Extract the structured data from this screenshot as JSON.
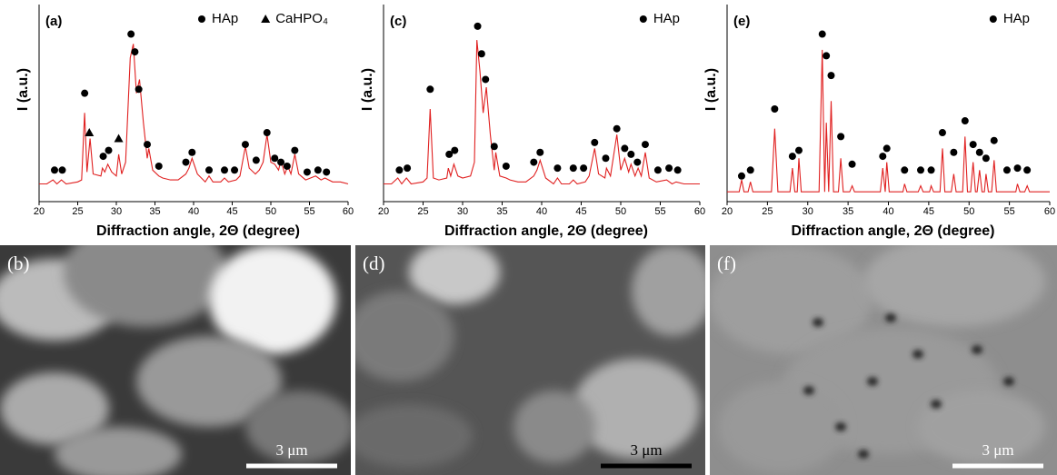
{
  "chart_data": [
    {
      "type": "line",
      "panel_label": "(a)",
      "xlabel": "Diffraction angle, 2Θ (degree)",
      "ylabel": "I (a.u.)",
      "xlim": [
        20,
        60
      ],
      "xticks": [
        20,
        25,
        30,
        35,
        40,
        45,
        50,
        55,
        60
      ],
      "ylim": [
        0,
        100
      ],
      "color": "#e02020",
      "x": [
        20,
        21,
        21.8,
        22.3,
        22.9,
        23.5,
        25,
        25.5,
        25.9,
        26.2,
        26.6,
        27,
        28,
        28.2,
        28.5,
        28.9,
        29.4,
        30,
        30.3,
        30.7,
        31.2,
        31.8,
        32.2,
        32.6,
        33,
        33.5,
        34,
        34.2,
        34.7,
        35.5,
        36,
        37,
        38,
        39,
        39.4,
        39.8,
        40.5,
        41.5,
        42,
        42.5,
        43.5,
        44,
        44.5,
        45.5,
        46,
        46.7,
        47.2,
        48,
        48.5,
        49,
        49.5,
        50,
        50.5,
        51,
        51.3,
        51.8,
        52.2,
        52.6,
        53.1,
        53.6,
        54.5,
        55.8,
        56.5,
        57,
        58,
        59,
        60
      ],
      "values": [
        9,
        9,
        11,
        9,
        11,
        9,
        10,
        11,
        45,
        15,
        32,
        14,
        13,
        17,
        15,
        19,
        15,
        13,
        24,
        14,
        20,
        73,
        80,
        55,
        62,
        40,
        22,
        27,
        16,
        13,
        12,
        11,
        11,
        14,
        17,
        22,
        14,
        10,
        13,
        10,
        10,
        12,
        10,
        11,
        13,
        28,
        17,
        14,
        16,
        20,
        34,
        20,
        19,
        16,
        21,
        14,
        18,
        14,
        24,
        14,
        11,
        13,
        11,
        12,
        10,
        10,
        9
      ],
      "markers": [
        {
          "name": "HAp",
          "symbol": "circle",
          "color": "#000000",
          "x": [
            22,
            23,
            25.9,
            28.3,
            29,
            31.9,
            32.4,
            32.9,
            34,
            35.5,
            39,
            39.8,
            42,
            44,
            45.3,
            46.7,
            48.1,
            49.5,
            50.5,
            51.3,
            52.1,
            53.1,
            54.7,
            56.1,
            57.2
          ],
          "values": [
            16,
            16,
            55,
            23,
            26,
            85,
            76,
            57,
            29,
            18,
            20,
            25,
            16,
            16,
            16,
            29,
            21,
            35,
            22,
            20,
            18,
            26,
            15,
            16,
            15
          ]
        },
        {
          "name": "CaHPO₄",
          "symbol": "triangle",
          "color": "#000000",
          "x": [
            26.5,
            30.3
          ],
          "values": [
            35,
            32
          ]
        }
      ]
    },
    {
      "type": "line",
      "panel_label": "(c)",
      "xlabel": "Diffraction angle, 2Θ (degree)",
      "ylabel": "I (a.u.)",
      "xlim": [
        20,
        60
      ],
      "xticks": [
        20,
        25,
        30,
        35,
        40,
        45,
        50,
        55,
        60
      ],
      "ylim": [
        0,
        100
      ],
      "color": "#e02020",
      "x": [
        20,
        21,
        21.8,
        22.3,
        22.9,
        23.5,
        25,
        25.5,
        25.9,
        26.3,
        27,
        28,
        28.2,
        28.5,
        28.9,
        29.4,
        30,
        31,
        31.5,
        31.8,
        32.2,
        32.6,
        33,
        33.5,
        34,
        34.2,
        34.7,
        35.5,
        36,
        37,
        38,
        39,
        39.4,
        39.8,
        40.5,
        41.5,
        42,
        42.5,
        43.5,
        44,
        44.5,
        45.5,
        46,
        46.7,
        47.2,
        48,
        48.2,
        48.7,
        49.5,
        50,
        50.5,
        51,
        51.3,
        51.8,
        52.2,
        52.6,
        53.1,
        53.6,
        54.5,
        55.8,
        56.5,
        57,
        58,
        59,
        60
      ],
      "values": [
        9,
        9,
        12,
        9,
        12,
        9,
        10,
        12,
        47,
        12,
        11,
        12,
        17,
        13,
        19,
        13,
        12,
        13,
        20,
        82,
        66,
        45,
        58,
        34,
        16,
        25,
        13,
        12,
        11,
        10,
        10,
        13,
        16,
        21,
        12,
        9,
        12,
        9,
        9,
        11,
        9,
        10,
        13,
        27,
        14,
        12,
        17,
        13,
        34,
        16,
        22,
        15,
        19,
        13,
        17,
        13,
        25,
        12,
        10,
        11,
        9,
        10,
        9,
        9,
        9
      ],
      "markers": [
        {
          "name": "HAp",
          "symbol": "circle",
          "color": "#000000",
          "x": [
            22,
            23,
            25.9,
            28.3,
            29,
            31.9,
            32.4,
            32.9,
            34,
            35.5,
            39,
            39.8,
            42,
            44,
            45.3,
            46.7,
            48.1,
            49.5,
            50.5,
            51.3,
            52.1,
            53.1,
            54.7,
            56.1,
            57.2
          ],
          "values": [
            16,
            17,
            57,
            24,
            26,
            89,
            75,
            62,
            28,
            18,
            20,
            25,
            17,
            17,
            17,
            30,
            22,
            37,
            27,
            24,
            20,
            29,
            16,
            17,
            16
          ]
        }
      ]
    },
    {
      "type": "line",
      "panel_label": "(e)",
      "xlabel": "Diffraction angle, 2Θ (degree)",
      "ylabel": "I (a.u.)",
      "xlim": [
        20,
        60
      ],
      "xticks": [
        20,
        25,
        30,
        35,
        40,
        45,
        50,
        55,
        60
      ],
      "ylim": [
        0,
        100
      ],
      "color": "#e02020",
      "x": [
        20,
        21.5,
        21.8,
        22.1,
        22.6,
        22.9,
        23.2,
        25.5,
        25.9,
        26.3,
        27.8,
        28.1,
        28.4,
        28.7,
        28.9,
        29.2,
        31.4,
        31.8,
        32.1,
        32.3,
        32.6,
        32.9,
        33.2,
        33.8,
        34.1,
        34.4,
        35.2,
        35.5,
        35.8,
        39,
        39.3,
        39.6,
        39.8,
        40.1,
        41.8,
        42,
        42.3,
        43.7,
        44,
        44.3,
        45.1,
        45.3,
        45.6,
        46.4,
        46.7,
        47,
        47.8,
        48.1,
        48.4,
        49.2,
        49.5,
        49.8,
        50.2,
        50.5,
        50.8,
        51,
        51.3,
        51.6,
        51.9,
        52.1,
        52.4,
        52.8,
        53.1,
        53.4,
        54.5,
        55.8,
        56,
        56.3,
        56.9,
        57.2,
        57.5,
        60
      ],
      "values": [
        5,
        5,
        11,
        5,
        5,
        10,
        5,
        5,
        37,
        5,
        5,
        17,
        5,
        5,
        22,
        5,
        5,
        77,
        5,
        40,
        5,
        51,
        5,
        5,
        22,
        5,
        5,
        8,
        5,
        5,
        17,
        5,
        20,
        5,
        5,
        9,
        5,
        5,
        8,
        5,
        5,
        8,
        5,
        5,
        27,
        5,
        5,
        14,
        5,
        5,
        33,
        5,
        5,
        20,
        5,
        5,
        16,
        5,
        5,
        14,
        5,
        5,
        21,
        5,
        5,
        5,
        9,
        5,
        5,
        8,
        5,
        5
      ],
      "markers": [
        {
          "name": "HAp",
          "symbol": "circle",
          "color": "#000000",
          "x": [
            21.8,
            22.9,
            25.9,
            28.1,
            28.9,
            31.8,
            32.3,
            32.9,
            34.1,
            35.5,
            39.3,
            39.8,
            42,
            44,
            45.3,
            46.7,
            48.1,
            49.5,
            50.5,
            51.3,
            52.1,
            53.1,
            54.7,
            56,
            57.2
          ],
          "values": [
            13,
            16,
            47,
            23,
            26,
            85,
            74,
            64,
            33,
            19,
            23,
            27,
            16,
            16,
            16,
            35,
            25,
            41,
            29,
            25,
            22,
            31,
            16,
            17,
            16
          ]
        }
      ]
    }
  ],
  "images": [
    {
      "label": "(b)",
      "scale_bar": "3 μm"
    },
    {
      "label": "(d)",
      "scale_bar": "3 μm"
    },
    {
      "label": "(f)",
      "scale_bar": "3 μm"
    }
  ]
}
